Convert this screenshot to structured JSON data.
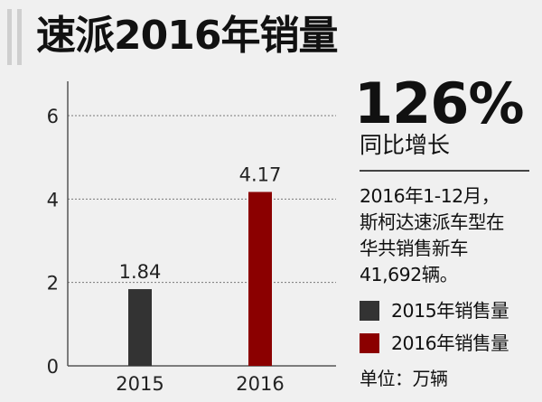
{
  "title": "速派2016年销量",
  "highlight": {
    "value": "126%",
    "label": "同比增长"
  },
  "description": [
    "2016年1-12月，",
    "斯柯达速派车型在",
    "华共销售新车",
    "41,692辆。"
  ],
  "legend": [
    {
      "label": "2015年销售量",
      "color": "#333333"
    },
    {
      "label": "2016年销售量",
      "color": "#8b0000"
    }
  ],
  "unit": "单位：万辆",
  "chart_data": {
    "type": "bar",
    "categories": [
      "2015",
      "2016"
    ],
    "values": [
      1.84,
      4.17
    ],
    "value_labels": [
      "1.84",
      "4.17"
    ],
    "colors": [
      "#333333",
      "#8b0000"
    ],
    "ylim": [
      0,
      6
    ],
    "yticks": [
      "0",
      "2",
      "4",
      "6"
    ],
    "ytick_values": [
      0,
      2,
      4,
      6
    ],
    "grid": true,
    "title": "",
    "xlabel": "",
    "ylabel": ""
  }
}
